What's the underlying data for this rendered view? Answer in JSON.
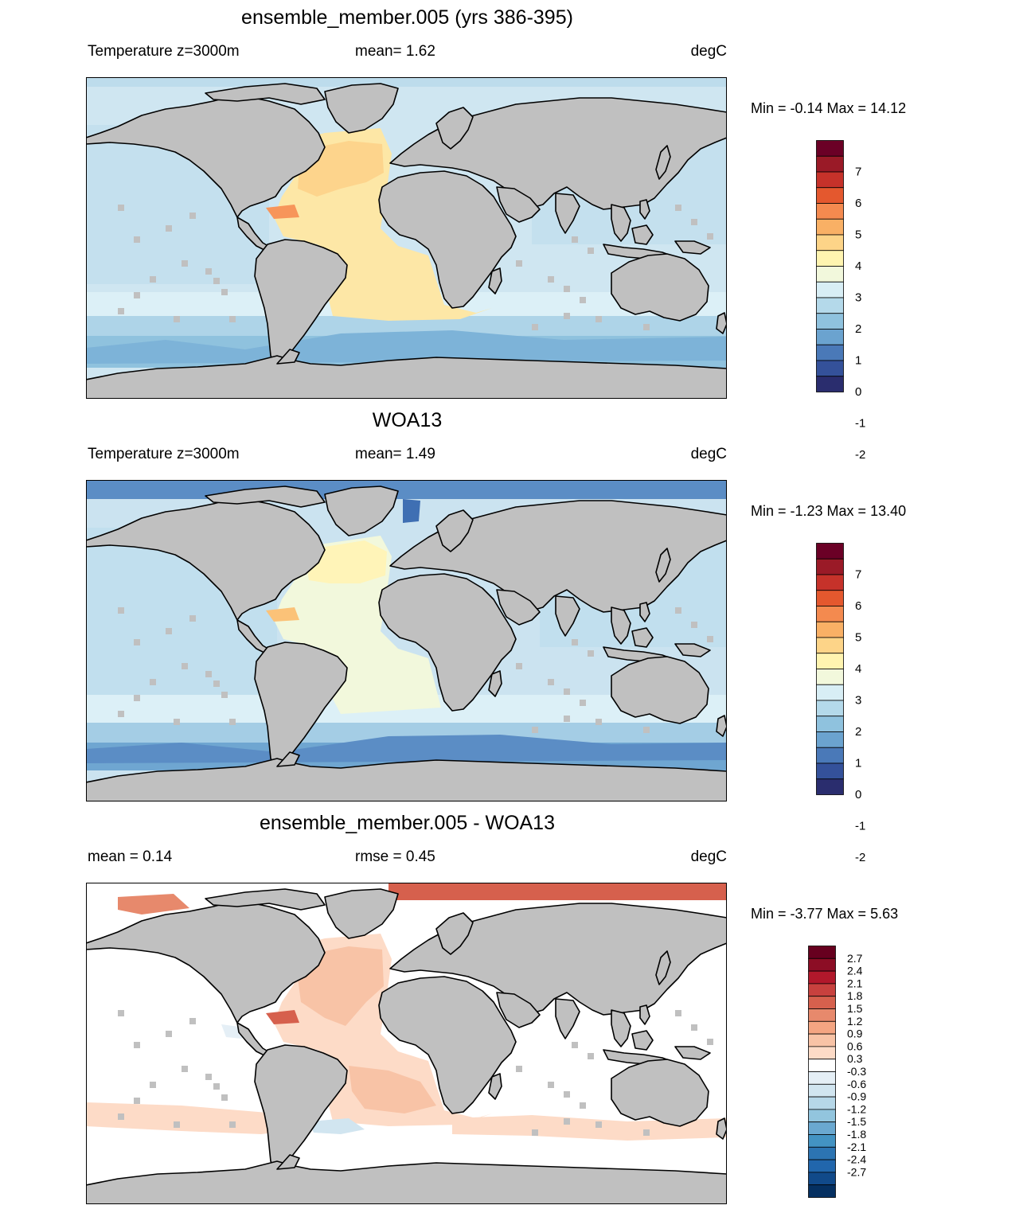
{
  "panels": [
    {
      "title": "ensemble_member.005 (yrs 386-395)",
      "left_label": "Temperature z=3000m",
      "center_label": "mean=   1.62",
      "units": "degC",
      "minmax": "Min =  -0.14 Max =  14.12",
      "scheme": "model"
    },
    {
      "title": "WOA13",
      "left_label": "Temperature z=3000m",
      "center_label": "mean=   1.49",
      "units": "degC",
      "minmax": "Min =  -1.23 Max =  13.40",
      "scheme": "obs"
    },
    {
      "title": "ensemble_member.005 - WOA13",
      "left_label": "mean =   0.14",
      "center_label": "rmse =   0.45",
      "units": "degC",
      "minmax": "Min =  -3.77 Max =   5.63",
      "scheme": "diff"
    }
  ],
  "colorbar_abs": {
    "colors": [
      "#6b0026",
      "#9a1a27",
      "#c6322a",
      "#e4582e",
      "#f48a4f",
      "#f9b065",
      "#fdd488",
      "#fff4b0",
      "#f2f8dc",
      "#d8eef5",
      "#b4d9ea",
      "#8fc2de",
      "#6ba3cf",
      "#4a79b8",
      "#34519a",
      "#2a2d6e"
    ],
    "labels": [
      "7",
      "6",
      "5",
      "4",
      "3",
      "2",
      "1",
      "0",
      "-1",
      "-2"
    ]
  },
  "colorbar_diff": {
    "colors": [
      "#67001f",
      "#8c0d25",
      "#b2182b",
      "#c8413e",
      "#d6604d",
      "#e7896c",
      "#f4a582",
      "#f8c3a6",
      "#fddbc7",
      "#ffffff",
      "#e5eff6",
      "#d1e5f0",
      "#b6d7e8",
      "#92c5de",
      "#6aa8d0",
      "#4393c3",
      "#2c74b2",
      "#2166ac",
      "#114a8a",
      "#053061"
    ],
    "labels": [
      "2.7",
      "2.4",
      "2.1",
      "1.8",
      "1.5",
      "1.2",
      "0.9",
      "0.6",
      "0.3",
      "-0.3",
      "-0.6",
      "-0.9",
      "-1.2",
      "-1.5",
      "-1.8",
      "-2.1",
      "-2.4",
      "-2.7"
    ]
  },
  "colors": {
    "land": "#c0c0c0",
    "coast": "#000000"
  }
}
